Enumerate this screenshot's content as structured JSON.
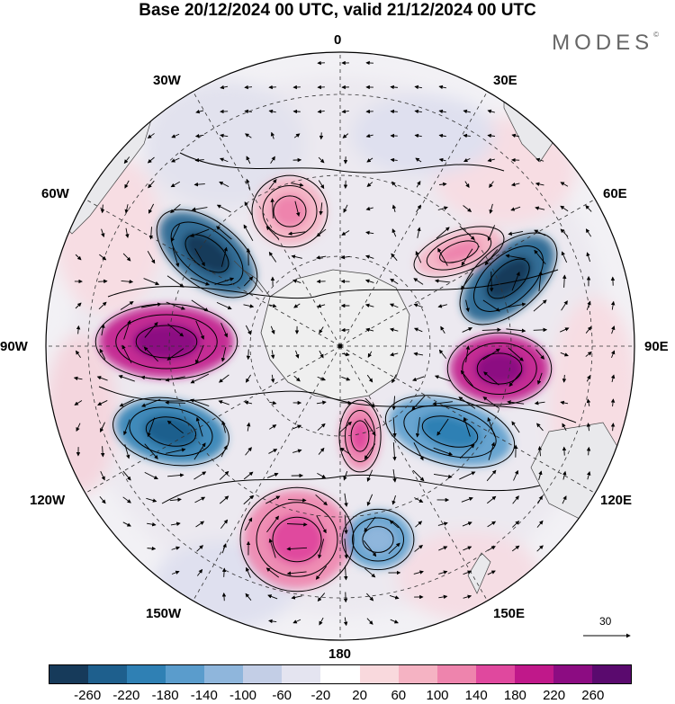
{
  "header": {
    "title": "Base 20/12/2024 00 UTC, valid 21/12/2024 00 UTC",
    "brand": "MODES",
    "brand_mark": "©"
  },
  "longitude_labels": [
    "0",
    "30E",
    "60E",
    "90E",
    "120E",
    "150E",
    "180",
    "150W",
    "120W",
    "90W",
    "60W",
    "30W"
  ],
  "wind_scale": {
    "label": "30"
  },
  "colorbar": {
    "colors": [
      "#163a5a",
      "#1e5f8d",
      "#2f80b4",
      "#5a9ccc",
      "#8fb6dc",
      "#c3cee6",
      "#e4e4f0",
      "#ffffff",
      "#f9d9dd",
      "#f5b3c3",
      "#ee84ad",
      "#e0489e",
      "#c0188a",
      "#8c0c82",
      "#5a0a6e"
    ],
    "tick_labels": [
      "-260",
      "-220",
      "-180",
      "-140",
      "-100",
      "-60",
      "-20",
      "20",
      "60",
      "100",
      "140",
      "180",
      "220",
      "260"
    ]
  },
  "anomalies": [
    {
      "name": "neg-60W",
      "color": "#1e5f8d",
      "core": "#163a5a"
    },
    {
      "name": "neg-65E",
      "color": "#1e5f8d",
      "core": "#163a5a"
    },
    {
      "name": "pos-90W",
      "color": "#c0188a",
      "core": "#8c0c82"
    },
    {
      "name": "pos-95E",
      "color": "#c0188a",
      "core": "#8c0c82"
    },
    {
      "name": "neg-110W",
      "color": "#2f80b4",
      "core": "#1e5f8d"
    },
    {
      "name": "pos-160W",
      "color": "#ee84ad",
      "core": "#e0489e"
    },
    {
      "name": "neg-140E",
      "color": "#5a9ccc",
      "core": "#8fb6dc"
    },
    {
      "name": "pos-10W",
      "color": "#f5b3c3",
      "core": "#ee84ad"
    },
    {
      "name": "pos-45E",
      "color": "#f5b3c3",
      "core": "#ee84ad"
    },
    {
      "name": "neg-125E",
      "color": "#5a9ccc",
      "core": "#2f80b4"
    },
    {
      "name": "pos-175W",
      "color": "#ee84ad",
      "core": "#e0489e"
    }
  ]
}
